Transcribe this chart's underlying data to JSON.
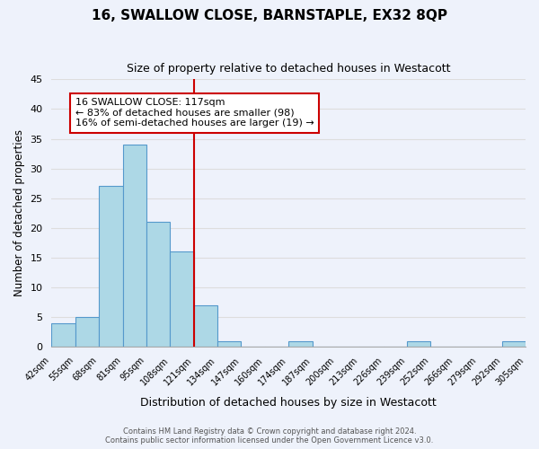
{
  "title": "16, SWALLOW CLOSE, BARNSTAPLE, EX32 8QP",
  "subtitle": "Size of property relative to detached houses in Westacott",
  "xlabel": "Distribution of detached houses by size in Westacott",
  "ylabel": "Number of detached properties",
  "footer_line1": "Contains HM Land Registry data © Crown copyright and database right 2024.",
  "footer_line2": "Contains public sector information licensed under the Open Government Licence v3.0.",
  "bin_labels": [
    "42sqm",
    "55sqm",
    "68sqm",
    "81sqm",
    "95sqm",
    "108sqm",
    "121sqm",
    "134sqm",
    "147sqm",
    "160sqm",
    "174sqm",
    "187sqm",
    "200sqm",
    "213sqm",
    "226sqm",
    "239sqm",
    "252sqm",
    "266sqm",
    "279sqm",
    "292sqm",
    "305sqm"
  ],
  "bar_heights": [
    4,
    5,
    27,
    34,
    21,
    16,
    7,
    1,
    0,
    0,
    1,
    0,
    0,
    0,
    0,
    1,
    0,
    0,
    0,
    1
  ],
  "bar_color": "#add8e6",
  "bar_edge_color": "#5599cc",
  "vline_color": "#cc0000",
  "vline_label_index": 6,
  "annotation_title": "16 SWALLOW CLOSE: 117sqm",
  "annotation_line1": "← 83% of detached houses are smaller (98)",
  "annotation_line2": "16% of semi-detached houses are larger (19) →",
  "annotation_box_color": "#ffffff",
  "annotation_box_edge": "#cc0000",
  "ylim": [
    0,
    45
  ],
  "yticks": [
    0,
    5,
    10,
    15,
    20,
    25,
    30,
    35,
    40,
    45
  ],
  "grid_color": "#dddddd",
  "background_color": "#eef2fb"
}
